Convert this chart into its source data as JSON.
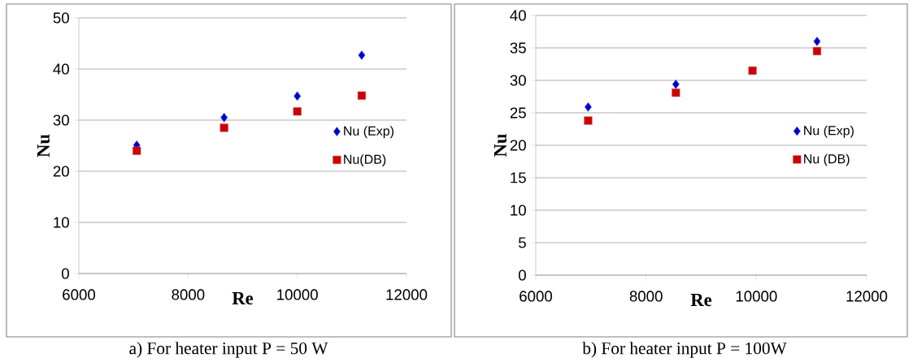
{
  "chart_data": [
    {
      "type": "scatter",
      "xlabel": "Re",
      "ylabel": "Nu",
      "xlim": [
        6000,
        12000
      ],
      "ylim": [
        0,
        50
      ],
      "xticks": [
        6000,
        8000,
        10000,
        12000
      ],
      "yticks": [
        0,
        10,
        20,
        30,
        40,
        50
      ],
      "grid": "y",
      "legend": "right",
      "annotations": [
        "a)  For heater input P = 50 W"
      ],
      "series": [
        {
          "name": "Nu (Exp)",
          "color": "#4f81bd",
          "marker": "diamond",
          "x": [
            7060,
            8660,
            10000,
            11180
          ],
          "values": [
            25.1,
            30.5,
            34.7,
            42.7
          ]
        },
        {
          "name": "Nu(DB)",
          "color": "#c0504d",
          "marker": "square",
          "x": [
            7060,
            8660,
            10000,
            11180
          ],
          "values": [
            24.0,
            28.5,
            31.7,
            34.8
          ]
        }
      ]
    },
    {
      "type": "scatter",
      "xlabel": "Re",
      "ylabel": "Nu",
      "xlim": [
        6000,
        12000
      ],
      "ylim": [
        0,
        40
      ],
      "xticks": [
        6000,
        8000,
        10000,
        12000
      ],
      "yticks": [
        0,
        5,
        10,
        15,
        20,
        25,
        30,
        35,
        40
      ],
      "grid": "y",
      "legend": "right",
      "annotations": [
        "b) For heater input P = 100W"
      ],
      "series": [
        {
          "name": "Nu (Exp)",
          "color": "#4f81bd",
          "marker": "diamond",
          "x": [
            6950,
            8540,
            9930,
            11100
          ],
          "values": [
            25.9,
            29.4,
            null,
            36.0
          ]
        },
        {
          "name": "Nu (DB)",
          "color": "#c0504d",
          "marker": "square",
          "x": [
            6950,
            8540,
            9930,
            11100
          ],
          "values": [
            23.8,
            28.1,
            31.5,
            34.5
          ]
        }
      ]
    }
  ]
}
